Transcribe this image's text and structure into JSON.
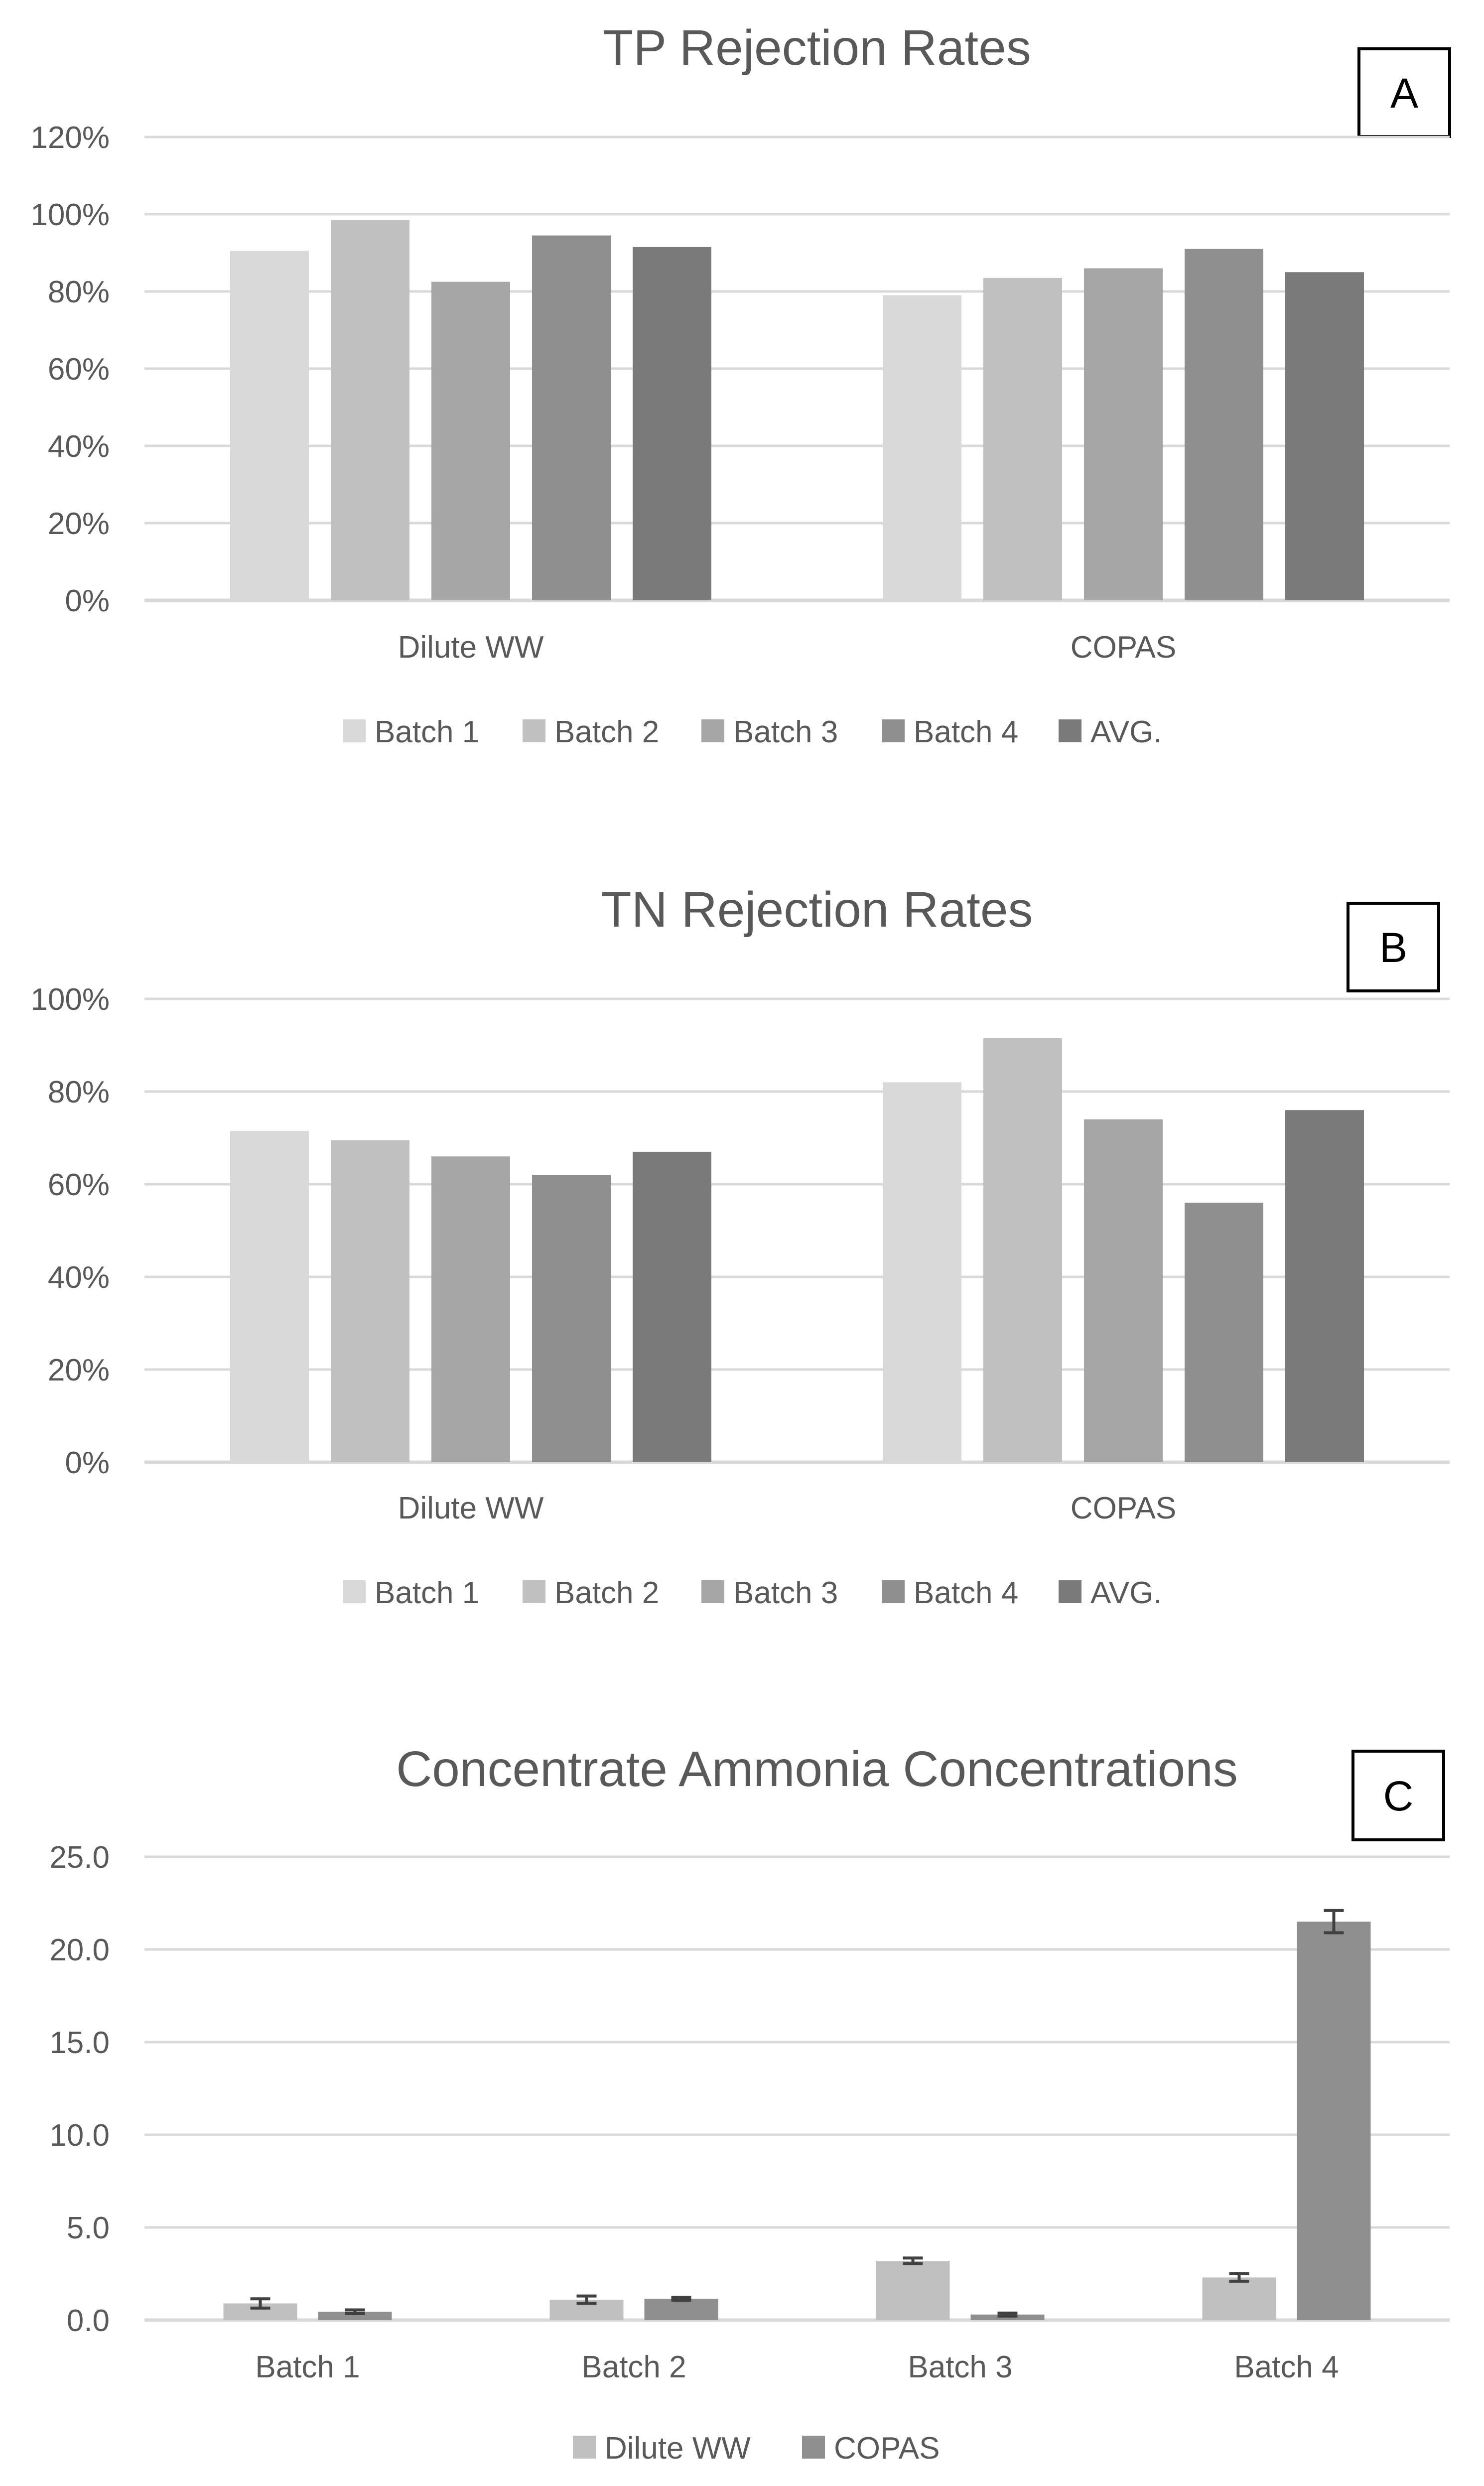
{
  "chart_data": [
    {
      "type": "bar",
      "panel": "A",
      "title": "TP Rejection Rates",
      "categories": [
        "Dilute WW",
        "COPAS"
      ],
      "yticks": [
        "0%",
        "20%",
        "40%",
        "60%",
        "80%",
        "100%",
        "120%"
      ],
      "ylim": [
        0,
        120
      ],
      "series": [
        {
          "name": "Batch 1",
          "color": "#d9d9d9",
          "values": [
            90.5,
            79
          ]
        },
        {
          "name": "Batch 2",
          "color": "#c0c0c0",
          "values": [
            98.5,
            83.5
          ]
        },
        {
          "name": "Batch 3",
          "color": "#a6a6a6",
          "values": [
            82.5,
            86
          ]
        },
        {
          "name": "Batch 4",
          "color": "#8f8f8f",
          "values": [
            94.5,
            91
          ]
        },
        {
          "name": "AVG.",
          "color": "#7a7a7a",
          "values": [
            91.5,
            85
          ]
        }
      ],
      "legend_position": "bottom"
    },
    {
      "type": "bar",
      "panel": "B",
      "title": "TN Rejection Rates",
      "categories": [
        "Dilute WW",
        "COPAS"
      ],
      "yticks": [
        "0%",
        "20%",
        "40%",
        "60%",
        "80%",
        "100%"
      ],
      "ylim": [
        0,
        100
      ],
      "series": [
        {
          "name": "Batch 1",
          "color": "#d9d9d9",
          "values": [
            71.5,
            82
          ]
        },
        {
          "name": "Batch 2",
          "color": "#c0c0c0",
          "values": [
            69.5,
            91.5
          ]
        },
        {
          "name": "Batch 3",
          "color": "#a6a6a6",
          "values": [
            66,
            74
          ]
        },
        {
          "name": "Batch 4",
          "color": "#8f8f8f",
          "values": [
            62,
            56
          ]
        },
        {
          "name": "AVG.",
          "color": "#7a7a7a",
          "values": [
            67,
            76
          ]
        }
      ],
      "legend_position": "bottom"
    },
    {
      "type": "bar",
      "panel": "C",
      "title": "Concentrate Ammonia Concentrations",
      "categories": [
        "Batch 1",
        "Batch 2",
        "Batch 3",
        "Batch 4"
      ],
      "yticks": [
        "0.0",
        "5.0",
        "10.0",
        "15.0",
        "20.0",
        "25.0"
      ],
      "ylim": [
        0,
        25
      ],
      "series": [
        {
          "name": "Dilute WW",
          "color": "#c0c0c0",
          "values": [
            0.9,
            1.1,
            3.2,
            2.3
          ],
          "errors": [
            0.25,
            0.2,
            0.15,
            0.2
          ]
        },
        {
          "name": "COPAS",
          "color": "#8f8f8f",
          "values": [
            0.45,
            1.15,
            0.3,
            21.5
          ],
          "errors": [
            0.1,
            0.08,
            0.08,
            0.6
          ]
        }
      ],
      "legend_position": "bottom"
    }
  ]
}
